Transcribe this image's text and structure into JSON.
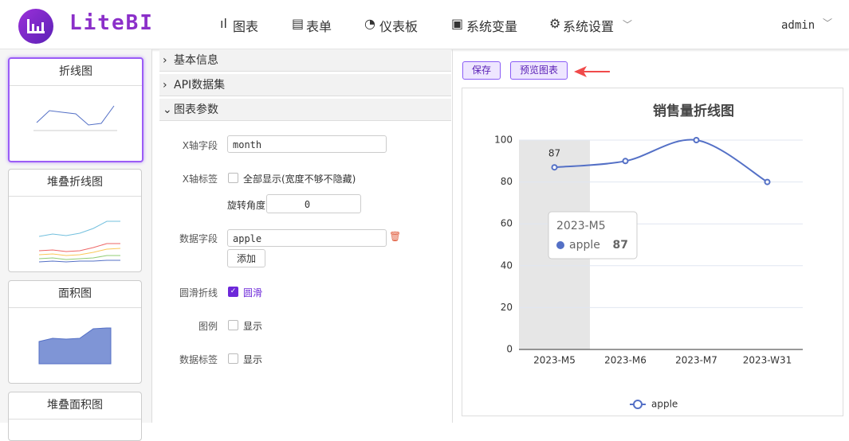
{
  "header": {
    "logo": "LiteBI",
    "nav": [
      "图表",
      "表单",
      "仪表板",
      "系统变量",
      "系统设置"
    ],
    "user": "admin"
  },
  "sidebar": {
    "cards": [
      "折线图",
      "堆叠折线图",
      "面积图",
      "堆叠面积图"
    ]
  },
  "form": {
    "sections": [
      "基本信息",
      "API数据集",
      "图表参数"
    ],
    "x_field": {
      "label": "X轴字段",
      "value": "month"
    },
    "x_label": {
      "label": "X轴标签",
      "option": "全部显示(宽度不够不隐藏)",
      "rotate_label": "旋转角度",
      "rotate_value": "0"
    },
    "data_field": {
      "label": "数据字段",
      "value": "apple",
      "add": "添加"
    },
    "smooth": {
      "label": "圆滑折线",
      "option": "圆滑"
    },
    "legend": {
      "label": "图例",
      "option": "显示"
    },
    "data_label": {
      "label": "数据标签",
      "option": "显示"
    }
  },
  "toolbar": [
    "保存",
    "预览图表"
  ],
  "chart_data": {
    "type": "line",
    "title": "销售量折线图",
    "categories": [
      "2023-M5",
      "2023-M6",
      "2023-M7",
      "2023-W31"
    ],
    "series": [
      {
        "name": "apple",
        "color": "#5470c6",
        "values": [
          87,
          90,
          100,
          80
        ]
      }
    ],
    "ylim": [
      0,
      100
    ],
    "yticks": [
      0,
      20,
      40,
      60,
      80,
      100
    ],
    "grid": true,
    "smooth": true
  }
}
